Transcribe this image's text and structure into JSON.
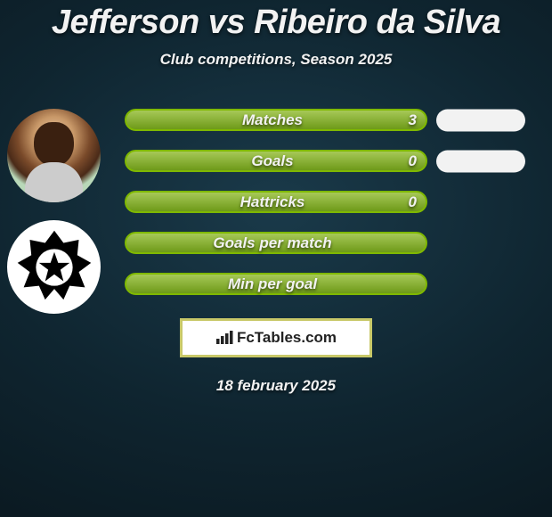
{
  "title": "Jefferson vs Ribeiro da Silva",
  "subtitle": "Club competitions, Season 2025",
  "date": "18 february 2025",
  "colors": {
    "accent_green": "#7fb800",
    "fill_green_light": "#a6c857",
    "fill_green_dark": "#6e9a18",
    "pill_white": "#f2f2f2",
    "brand_border": "#c8c868",
    "text": "#f2f2f2",
    "bg_inner": "#1a3a4a",
    "bg_outer": "#081218"
  },
  "stats": [
    {
      "label": "Matches",
      "value_left": "3",
      "show_right_pill": true
    },
    {
      "label": "Goals",
      "value_left": "0",
      "show_right_pill": true
    },
    {
      "label": "Hattricks",
      "value_left": "0",
      "show_right_pill": false
    },
    {
      "label": "Goals per match",
      "value_left": "",
      "show_right_pill": false
    },
    {
      "label": "Min per goal",
      "value_left": "",
      "show_right_pill": false
    }
  ],
  "brand": {
    "text": "FcTables.com",
    "icon": "bar-chart-icon"
  },
  "avatars": {
    "player_name": "Jefferson",
    "club_name": "Botafogo"
  }
}
